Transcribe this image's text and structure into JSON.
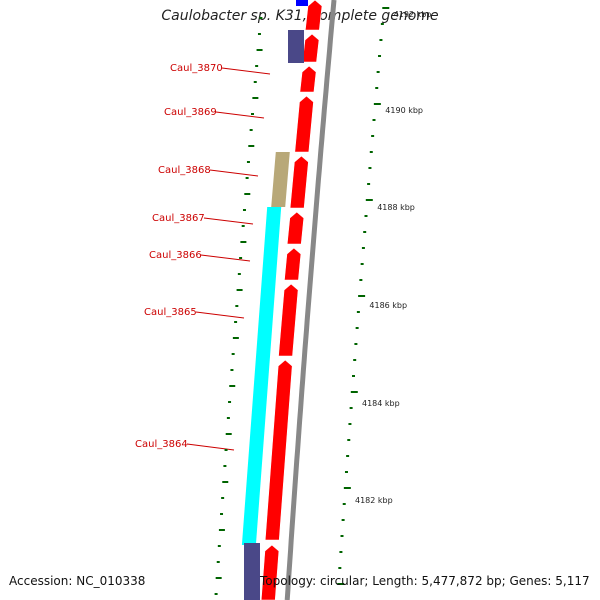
{
  "title": "Caulobacter sp. K31, complete genome",
  "footer": {
    "accession": "Accession: NC_010338",
    "summary": "Topology: circular; Length: 5,477,872 bp; Genes: 5,117"
  },
  "colors": {
    "cds_forward": "#ff0000",
    "backbone": "#888888",
    "ticks": "#006400",
    "gene_label": "#cc0000",
    "purple": "#4a4888",
    "cyan": "#00ffff",
    "tan": "#b8a878",
    "blue": "#0000ff"
  },
  "kbp_labels": [
    "4192 kbp",
    "4190 kbp",
    "4188 kbp",
    "4186 kbp",
    "4184 kbp",
    "4182 kbp"
  ],
  "gene_labels": [
    "Caul_3870",
    "Caul_3869",
    "Caul_3868",
    "Caul_3867",
    "Caul_3866",
    "Caul_3865",
    "Caul_3864"
  ]
}
